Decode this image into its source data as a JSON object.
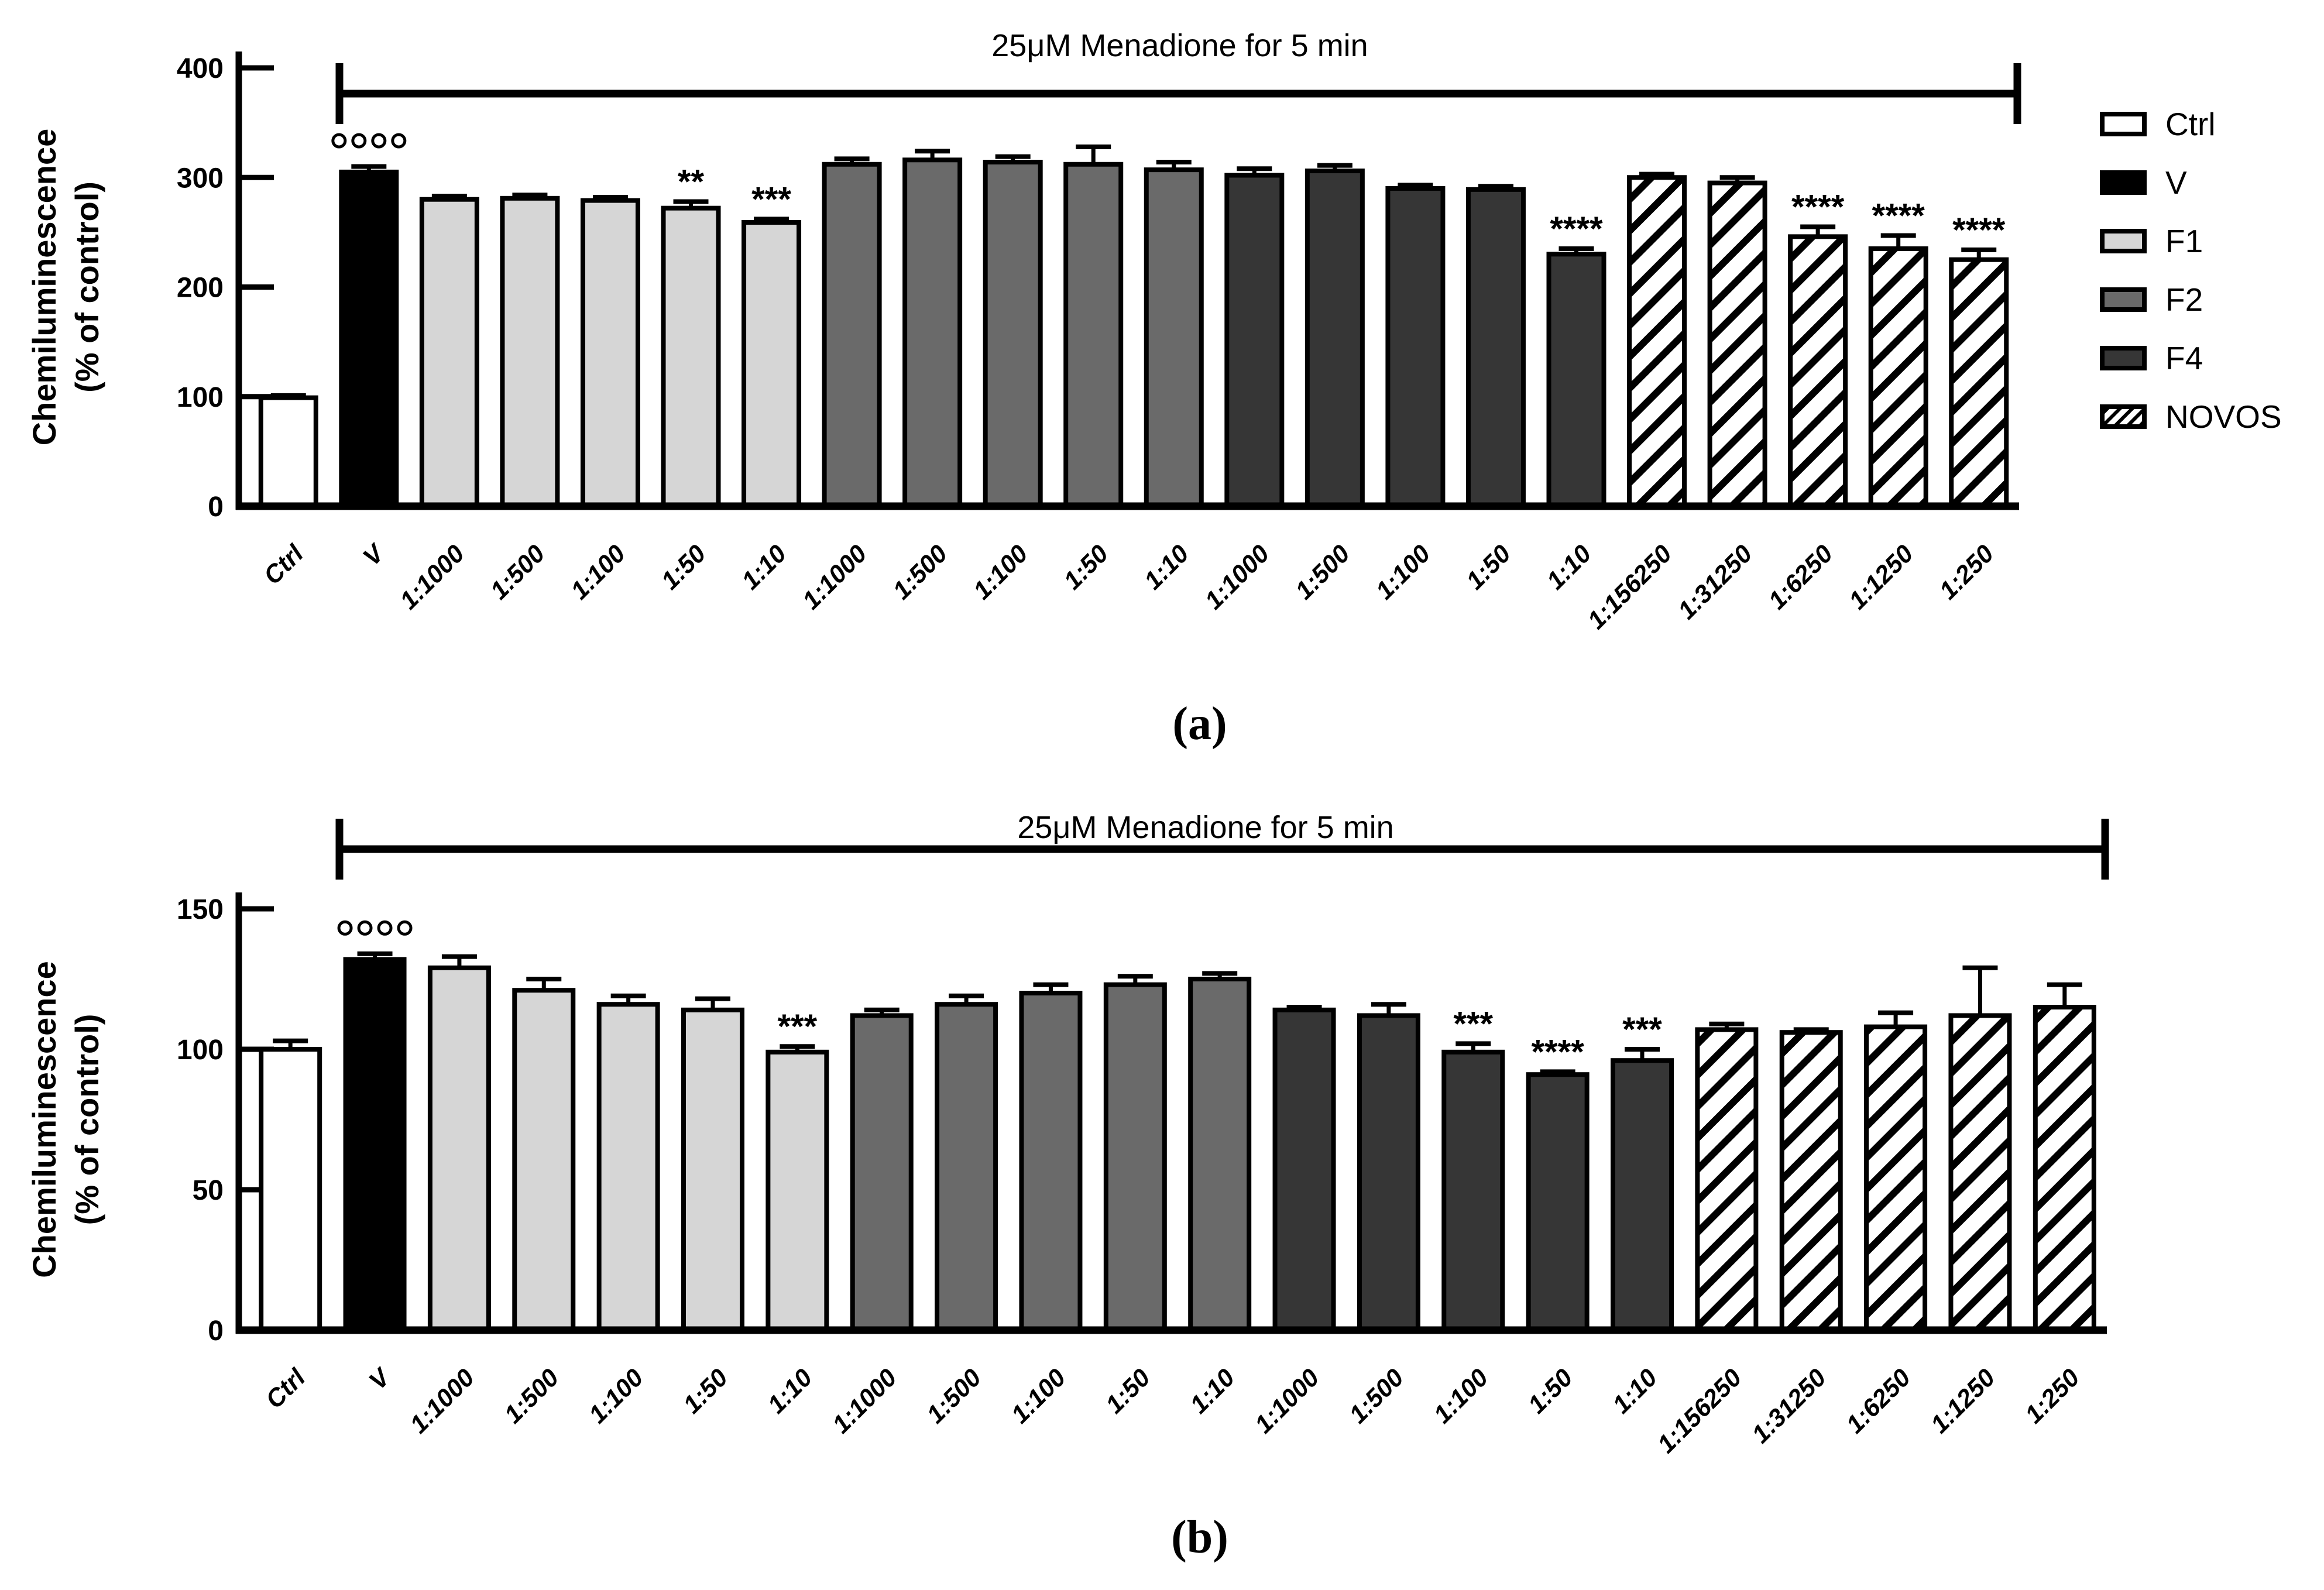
{
  "figure": {
    "caption_a": "(a)",
    "caption_b": "(b)",
    "background": "#ffffff"
  },
  "colors": {
    "ctrl": "#ffffff",
    "v": "#000000",
    "f1": "#d6d6d6",
    "f2": "#6a6a6a",
    "f4": "#363636",
    "novos_hatch": "#000000",
    "axis": "#000000"
  },
  "legend": {
    "items": [
      {
        "key": "ctrl",
        "label": "Ctrl"
      },
      {
        "key": "v",
        "label": "V"
      },
      {
        "key": "f1",
        "label": "F1"
      },
      {
        "key": "f2",
        "label": "F2"
      },
      {
        "key": "f4",
        "label": "F4"
      },
      {
        "key": "novos",
        "label": "NOVOS"
      }
    ]
  },
  "chart_data": [
    {
      "id": "a",
      "type": "bar",
      "title": "25μM Menadione for 5 min",
      "ylabel_line1": "Chemiluminescence",
      "ylabel_line2": "(% of control)",
      "xlabel": "",
      "ylim": [
        0,
        400
      ],
      "yticks": [
        0,
        100,
        200,
        300,
        400
      ],
      "grid": false,
      "legend_position": "right",
      "bracket": "spans all treated bars (V through 1:250)",
      "bars": [
        {
          "category": "Ctrl",
          "group": "ctrl",
          "value": 99,
          "error": 2,
          "annotation": ""
        },
        {
          "category": "V",
          "group": "v",
          "value": 305,
          "error": 5,
          "annotation": "°°°°"
        },
        {
          "category": "1:1000",
          "group": "f1",
          "value": 280,
          "error": 3,
          "annotation": ""
        },
        {
          "category": "1:500",
          "group": "f1",
          "value": 281,
          "error": 3,
          "annotation": ""
        },
        {
          "category": "1:100",
          "group": "f1",
          "value": 279,
          "error": 3,
          "annotation": ""
        },
        {
          "category": "1:50",
          "group": "f1",
          "value": 272,
          "error": 6,
          "annotation": "**"
        },
        {
          "category": "1:10",
          "group": "f1",
          "value": 259,
          "error": 3,
          "annotation": "***"
        },
        {
          "category": "1:1000",
          "group": "f2",
          "value": 312,
          "error": 5,
          "annotation": ""
        },
        {
          "category": "1:500",
          "group": "f2",
          "value": 316,
          "error": 8,
          "annotation": ""
        },
        {
          "category": "1:100",
          "group": "f2",
          "value": 314,
          "error": 5,
          "annotation": ""
        },
        {
          "category": "1:50",
          "group": "f2",
          "value": 312,
          "error": 16,
          "annotation": ""
        },
        {
          "category": "1:10",
          "group": "f2",
          "value": 307,
          "error": 7,
          "annotation": ""
        },
        {
          "category": "1:1000",
          "group": "f4",
          "value": 302,
          "error": 6,
          "annotation": ""
        },
        {
          "category": "1:500",
          "group": "f4",
          "value": 306,
          "error": 5,
          "annotation": ""
        },
        {
          "category": "1:100",
          "group": "f4",
          "value": 290,
          "error": 3,
          "annotation": ""
        },
        {
          "category": "1:50",
          "group": "f4",
          "value": 289,
          "error": 3,
          "annotation": ""
        },
        {
          "category": "1:10",
          "group": "f4",
          "value": 230,
          "error": 5,
          "annotation": "****"
        },
        {
          "category": "1:156250",
          "group": "novos",
          "value": 300,
          "error": 3,
          "annotation": ""
        },
        {
          "category": "1:31250",
          "group": "novos",
          "value": 295,
          "error": 5,
          "annotation": ""
        },
        {
          "category": "1:6250",
          "group": "novos",
          "value": 246,
          "error": 9,
          "annotation": "****"
        },
        {
          "category": "1:1250",
          "group": "novos",
          "value": 235,
          "error": 12,
          "annotation": "****"
        },
        {
          "category": "1:250",
          "group": "novos",
          "value": 225,
          "error": 9,
          "annotation": "****"
        }
      ]
    },
    {
      "id": "b",
      "type": "bar",
      "title": "25μM Menadione for 5 min",
      "ylabel_line1": "Chemiluminescence",
      "ylabel_line2": "(% of control)",
      "xlabel": "",
      "ylim": [
        0,
        150
      ],
      "yticks": [
        0,
        50,
        100,
        150
      ],
      "grid": false,
      "legend_position": "none",
      "bracket": "spans all treated bars (V through 1:250)",
      "bars": [
        {
          "category": "Ctrl",
          "group": "ctrl",
          "value": 100,
          "error": 3,
          "annotation": ""
        },
        {
          "category": "V",
          "group": "v",
          "value": 132,
          "error": 2,
          "annotation": "°°°°"
        },
        {
          "category": "1:1000",
          "group": "f1",
          "value": 129,
          "error": 4,
          "annotation": ""
        },
        {
          "category": "1:500",
          "group": "f1",
          "value": 121,
          "error": 4,
          "annotation": ""
        },
        {
          "category": "1:100",
          "group": "f1",
          "value": 116,
          "error": 3,
          "annotation": ""
        },
        {
          "category": "1:50",
          "group": "f1",
          "value": 114,
          "error": 4,
          "annotation": ""
        },
        {
          "category": "1:10",
          "group": "f1",
          "value": 99,
          "error": 2,
          "annotation": "***"
        },
        {
          "category": "1:1000",
          "group": "f2",
          "value": 112,
          "error": 2,
          "annotation": ""
        },
        {
          "category": "1:500",
          "group": "f2",
          "value": 116,
          "error": 3,
          "annotation": ""
        },
        {
          "category": "1:100",
          "group": "f2",
          "value": 120,
          "error": 3,
          "annotation": ""
        },
        {
          "category": "1:50",
          "group": "f2",
          "value": 123,
          "error": 3,
          "annotation": ""
        },
        {
          "category": "1:10",
          "group": "f2",
          "value": 125,
          "error": 2,
          "annotation": ""
        },
        {
          "category": "1:1000",
          "group": "f4",
          "value": 114,
          "error": 1,
          "annotation": ""
        },
        {
          "category": "1:500",
          "group": "f4",
          "value": 112,
          "error": 4,
          "annotation": ""
        },
        {
          "category": "1:100",
          "group": "f4",
          "value": 99,
          "error": 3,
          "annotation": "***"
        },
        {
          "category": "1:50",
          "group": "f4",
          "value": 91,
          "error": 1,
          "annotation": "****"
        },
        {
          "category": "1:10",
          "group": "f4",
          "value": 96,
          "error": 4,
          "annotation": "***"
        },
        {
          "category": "1:156250",
          "group": "novos",
          "value": 107,
          "error": 2,
          "annotation": ""
        },
        {
          "category": "1:31250",
          "group": "novos",
          "value": 106,
          "error": 1,
          "annotation": ""
        },
        {
          "category": "1:6250",
          "group": "novos",
          "value": 108,
          "error": 5,
          "annotation": ""
        },
        {
          "category": "1:1250",
          "group": "novos",
          "value": 112,
          "error": 17,
          "annotation": ""
        },
        {
          "category": "1:250",
          "group": "novos",
          "value": 115,
          "error": 8,
          "annotation": ""
        }
      ]
    }
  ]
}
